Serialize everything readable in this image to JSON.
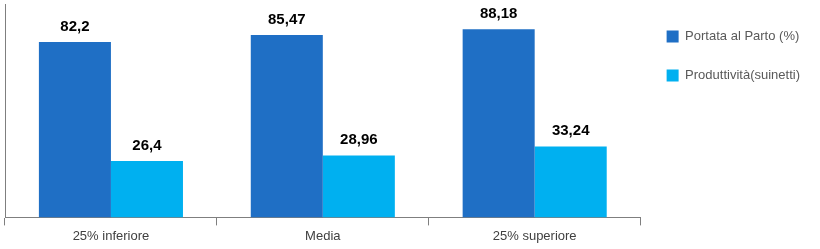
{
  "chart_data": {
    "type": "bar",
    "categories": [
      "25% inferiore",
      "Media",
      "25% superiore"
    ],
    "series": [
      {
        "name": "Portata al Parto (%)",
        "color": "#1f6fc5",
        "values": [
          82.2,
          85.47,
          88.18
        ],
        "value_labels": [
          "82,2",
          "85,47",
          "88,18"
        ]
      },
      {
        "name": "Produttività(suinetti)",
        "color": "#00b0f0",
        "values": [
          26.4,
          28.96,
          33.24
        ],
        "value_labels": [
          "26,4",
          "28,96",
          "33,24"
        ]
      }
    ],
    "ylim": [
      0,
      100
    ],
    "grid": false,
    "legend": "right",
    "data_labels": true,
    "tick_labels": "x"
  }
}
